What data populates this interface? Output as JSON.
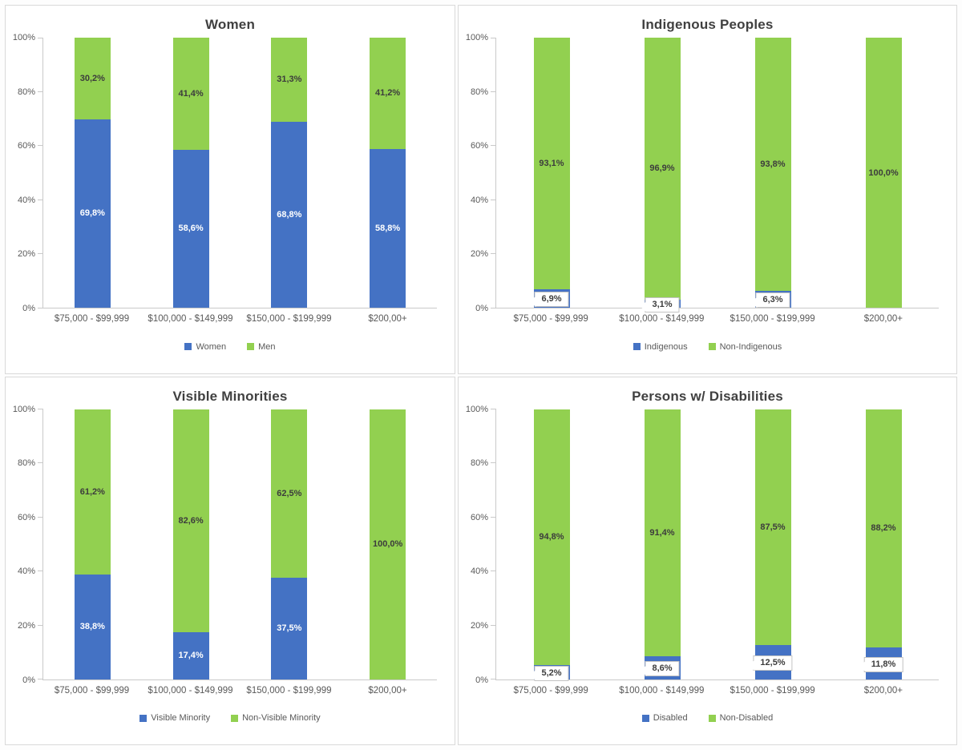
{
  "colors": {
    "blue": "#4472c4",
    "green": "#92d050",
    "title_text": "#404040",
    "axis_text": "#595959",
    "dark_label_text": "#3c3c3c",
    "white_label_text": "#ffffff",
    "axis_line": "#c9c9c9",
    "panel_border": "#d9d9d9",
    "callout_border": "#c3c3c3"
  },
  "axis": {
    "ticks": [
      "100%",
      "80%",
      "60%",
      "40%",
      "20%",
      "0%"
    ],
    "ymin": 0,
    "ymax": 100,
    "gridlines": false
  },
  "categories": [
    "$75,000 - $99,999",
    "$100,000 - $149,999",
    "$150,000 - $199,999",
    "$200,00+"
  ],
  "chart_data": [
    {
      "type": "bar",
      "stacked": true,
      "title": "Women",
      "categories": [
        "$75,000 - $99,999",
        "$100,000 - $149,999",
        "$150,000 - $199,999",
        "$200,00+"
      ],
      "ylim": [
        0,
        100
      ],
      "legend_position": "bottom",
      "series": [
        {
          "name": "Women",
          "color_key": "blue",
          "values": [
            69.8,
            58.6,
            68.8,
            58.8
          ],
          "labels": [
            "69,8%",
            "58,6%",
            "68,8%",
            "58,8%"
          ],
          "label_styles": [
            "inline",
            "inline",
            "inline",
            "inline"
          ]
        },
        {
          "name": "Men",
          "color_key": "green",
          "values": [
            30.2,
            41.4,
            31.3,
            41.2
          ],
          "labels": [
            "30,2%",
            "41,4%",
            "31,3%",
            "41,2%"
          ],
          "label_styles": [
            "inline",
            "inline",
            "inline",
            "inline"
          ]
        }
      ]
    },
    {
      "type": "bar",
      "stacked": true,
      "title": "Indigenous Peoples",
      "categories": [
        "$75,000 - $99,999",
        "$100,000 - $149,999",
        "$150,000 - $199,999",
        "$200,00+"
      ],
      "ylim": [
        0,
        100
      ],
      "legend_position": "bottom",
      "series": [
        {
          "name": "Indigenous",
          "color_key": "blue",
          "values": [
            6.9,
            3.1,
            6.3,
            0
          ],
          "labels": [
            "6,9%",
            "3,1%",
            "6,3%",
            ""
          ],
          "label_styles": [
            "callout",
            "callout",
            "callout",
            "none"
          ]
        },
        {
          "name": "Non-Indigenous",
          "color_key": "green",
          "values": [
            93.1,
            96.9,
            93.8,
            100.0
          ],
          "labels": [
            "93,1%",
            "96,9%",
            "93,8%",
            "100,0%"
          ],
          "label_styles": [
            "inline",
            "inline",
            "inline",
            "inline"
          ]
        }
      ]
    },
    {
      "type": "bar",
      "stacked": true,
      "title": "Visible Minorities",
      "categories": [
        "$75,000 - $99,999",
        "$100,000 - $149,999",
        "$150,000 - $199,999",
        "$200,00+"
      ],
      "ylim": [
        0,
        100
      ],
      "legend_position": "bottom",
      "series": [
        {
          "name": "Visible Minority",
          "color_key": "blue",
          "values": [
            38.8,
            17.4,
            37.5,
            0
          ],
          "labels": [
            "38,8%",
            "17,4%",
            "37,5%",
            ""
          ],
          "label_styles": [
            "inline",
            "inline",
            "inline",
            "none"
          ]
        },
        {
          "name": "Non-Visible Minority",
          "color_key": "green",
          "values": [
            61.2,
            82.6,
            62.5,
            100.0
          ],
          "labels": [
            "61,2%",
            "82,6%",
            "62,5%",
            "100,0%"
          ],
          "label_styles": [
            "inline",
            "inline",
            "inline",
            "inline"
          ]
        }
      ]
    },
    {
      "type": "bar",
      "stacked": true,
      "title": "Persons w/ Disabilities",
      "categories": [
        "$75,000 - $99,999",
        "$100,000 - $149,999",
        "$150,000 - $199,999",
        "$200,00+"
      ],
      "ylim": [
        0,
        100
      ],
      "legend_position": "bottom",
      "series": [
        {
          "name": "Disabled",
          "color_key": "blue",
          "values": [
            5.2,
            8.6,
            12.5,
            11.8
          ],
          "labels": [
            "5,2%",
            "8,6%",
            "12,5%",
            "11,8%"
          ],
          "label_styles": [
            "callout",
            "callout",
            "callout",
            "callout"
          ]
        },
        {
          "name": "Non-Disabled",
          "color_key": "green",
          "values": [
            94.8,
            91.4,
            87.5,
            88.2
          ],
          "labels": [
            "94,8%",
            "91,4%",
            "87,5%",
            "88,2%"
          ],
          "label_styles": [
            "inline",
            "inline",
            "inline",
            "inline"
          ]
        }
      ]
    }
  ]
}
